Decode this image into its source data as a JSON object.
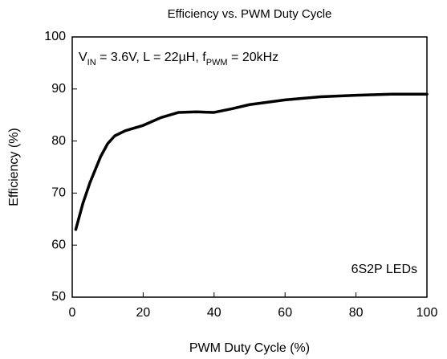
{
  "chart_data": {
    "type": "line",
    "title": "Efficiency vs. PWM Duty Cycle",
    "xlabel": "PWM Duty Cycle (%)",
    "ylabel": "Efficiency (%)",
    "annotations": [
      [
        {
          "text": "V"
        },
        {
          "text": "IN",
          "sub": true
        },
        {
          "text": " = 3.6V, L = 22µH, f"
        },
        {
          "text": "PWM",
          "sub": true
        },
        {
          "text": " = 20kHz"
        }
      ],
      [
        {
          "text": "6S2P LEDs"
        }
      ]
    ],
    "x": [
      1,
      3,
      5,
      8,
      10,
      12,
      15,
      20,
      25,
      30,
      35,
      40,
      45,
      50,
      60,
      70,
      80,
      90,
      100
    ],
    "values": [
      63,
      68,
      72,
      77,
      79.5,
      81,
      82,
      83,
      84.5,
      85.5,
      85.6,
      85.5,
      86.2,
      87,
      87.9,
      88.5,
      88.8,
      89,
      89
    ],
    "color": "#000000",
    "xlim": [
      0,
      100
    ],
    "xticks": [
      0,
      20,
      40,
      60,
      80,
      100
    ],
    "ylim": [
      50,
      100
    ],
    "yticks": [
      50,
      60,
      70,
      80,
      90,
      100
    ],
    "grid": false
  }
}
